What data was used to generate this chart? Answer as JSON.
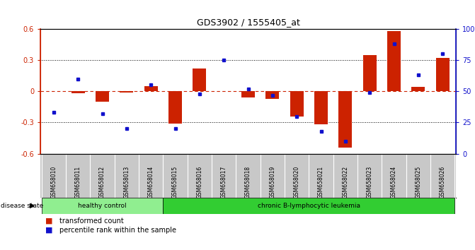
{
  "title": "GDS3902 / 1555405_at",
  "samples": [
    "GSM658010",
    "GSM658011",
    "GSM658012",
    "GSM658013",
    "GSM658014",
    "GSM658015",
    "GSM658016",
    "GSM658017",
    "GSM658018",
    "GSM658019",
    "GSM658020",
    "GSM658021",
    "GSM658022",
    "GSM658023",
    "GSM658024",
    "GSM658025",
    "GSM658026"
  ],
  "red_bars": [
    0.0,
    -0.02,
    -0.1,
    -0.01,
    0.05,
    -0.31,
    0.22,
    0.0,
    -0.06,
    -0.07,
    -0.24,
    -0.32,
    -0.54,
    0.35,
    0.58,
    0.04,
    0.32
  ],
  "blue_dots_pct": [
    33,
    60,
    32,
    20,
    55,
    20,
    48,
    75,
    52,
    47,
    30,
    18,
    10,
    49,
    88,
    63,
    80
  ],
  "groups": [
    {
      "label": "healthy control",
      "start": 0,
      "end": 4,
      "color": "#90ee90"
    },
    {
      "label": "chronic B-lymphocytic leukemia",
      "start": 5,
      "end": 16,
      "color": "#32cd32"
    }
  ],
  "ylim_left": [
    -0.6,
    0.6
  ],
  "ylim_right": [
    0,
    100
  ],
  "yticks_left": [
    -0.6,
    -0.3,
    0.0,
    0.3,
    0.6
  ],
  "ytick_labels_left": [
    "-0.6",
    "-0.3",
    "0",
    "0.3",
    "0.6"
  ],
  "yticks_right": [
    0,
    25,
    50,
    75,
    100
  ],
  "ytick_labels_right": [
    "0",
    "25",
    "50",
    "75",
    "100%"
  ],
  "bar_color": "#cc2200",
  "dot_color": "#1111cc",
  "zero_line_color": "#cc2200",
  "grid_color": "#555555",
  "background_color": "#ffffff",
  "disease_state_label": "disease state",
  "legend_red": "transformed count",
  "legend_blue": "percentile rank within the sample",
  "bar_width": 0.55
}
